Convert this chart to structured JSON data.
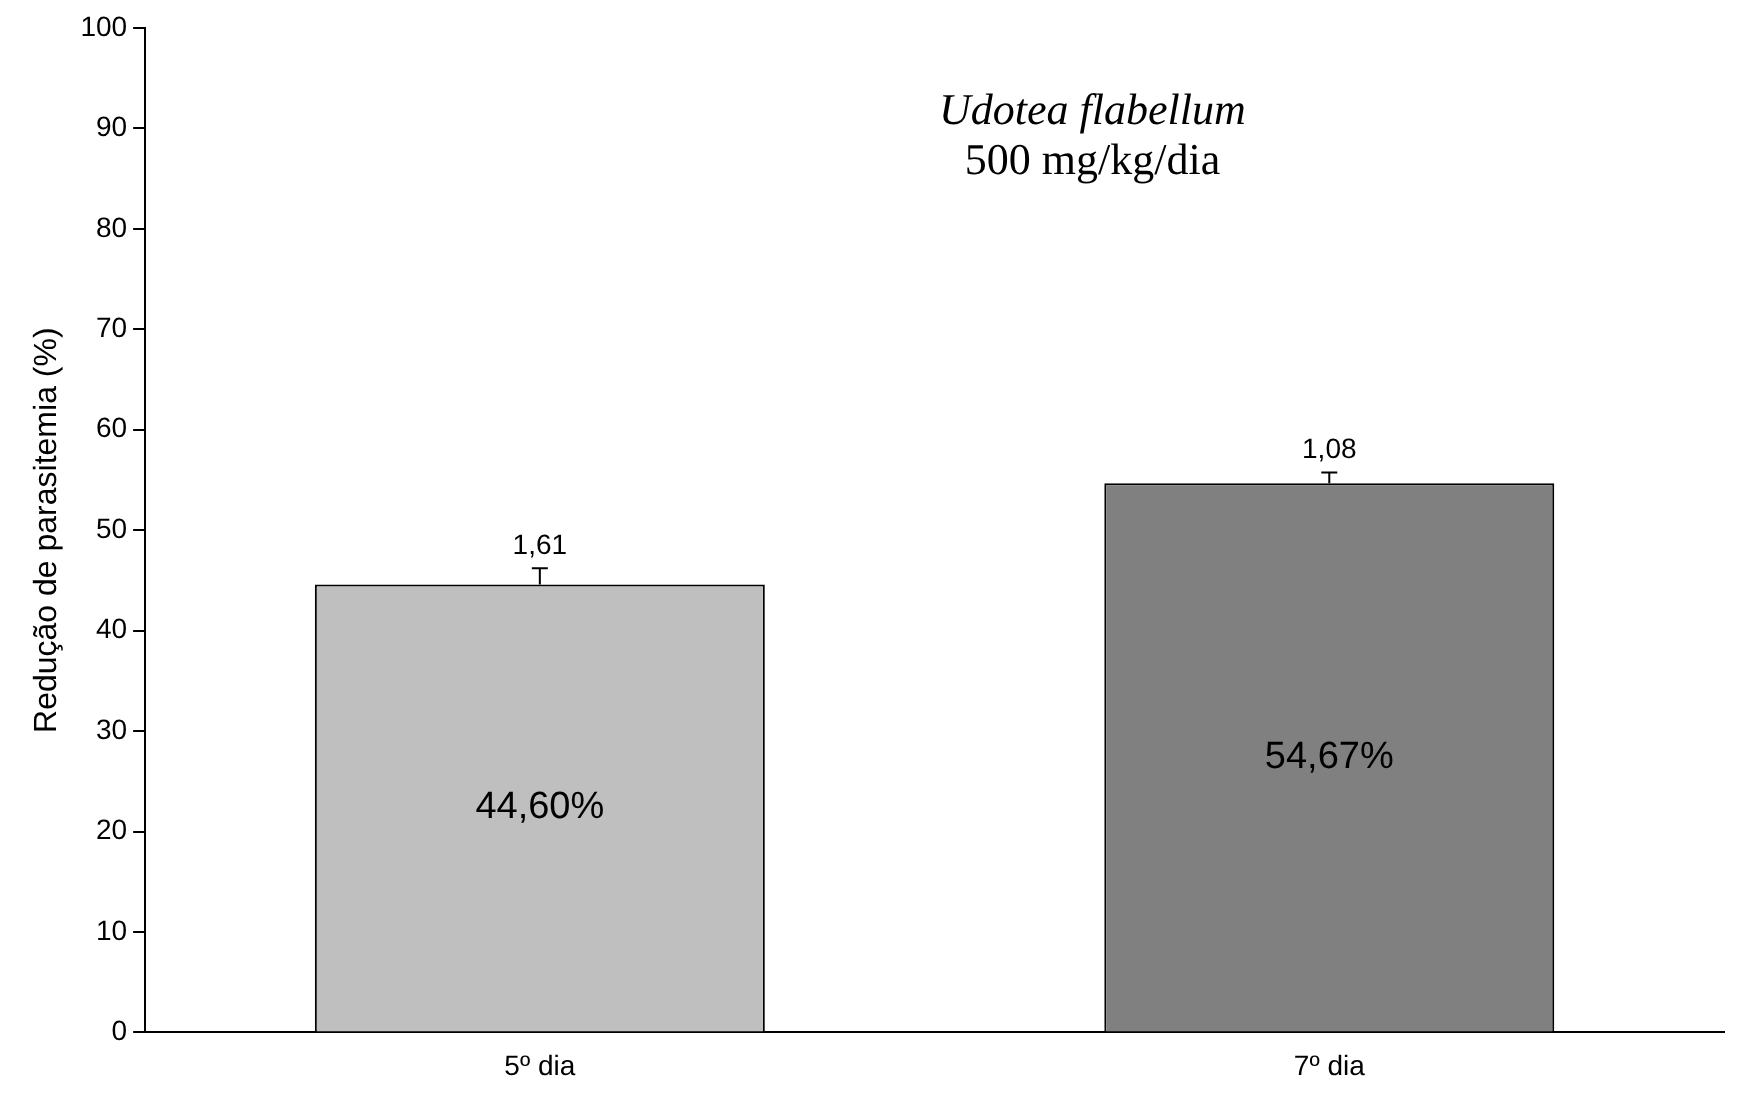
{
  "chart_data": {
    "type": "bar",
    "title": "Udotea flabellum",
    "subtitle": "500 mg/kg/dia",
    "ylabel": "Redução de parasitemia (%)",
    "categories": [
      "5º dia",
      "7º dia"
    ],
    "values": [
      44.6,
      54.67
    ],
    "colors": [
      "#bfbfbf",
      "#808080"
    ],
    "errors": [
      [
        44.6,
        46.21
      ],
      [
        54.67,
        55.75
      ]
    ],
    "value_labels": [
      "44,60%",
      "54,67%"
    ],
    "annotations": [
      {
        "text": "1,61",
        "x": "5º dia",
        "y": 46.21
      },
      {
        "text": "1,08",
        "x": "7º dia",
        "y": 55.75
      }
    ],
    "ylim": [
      0,
      100
    ],
    "yticks": [
      0,
      10,
      20,
      30,
      40,
      50,
      60,
      70,
      80,
      90,
      100
    ],
    "grid": false,
    "legend": false
  }
}
